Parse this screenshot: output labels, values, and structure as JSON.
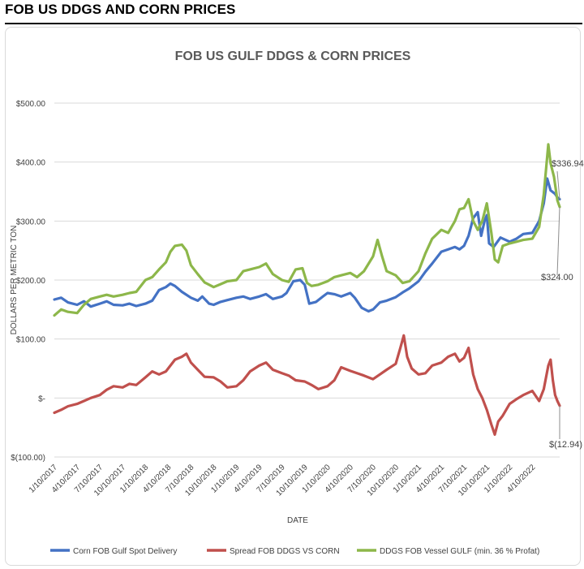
{
  "page": {
    "heading": "FOB US DDGS AND CORN PRICES"
  },
  "colors": {
    "corn": "#4472c4",
    "spread": "#c0504d",
    "ddgs": "#8db74a",
    "grid": "#d9d9d9",
    "text": "#595959"
  },
  "chart_data": {
    "type": "line",
    "title": "FOB US GULF DDGS & CORN PRICES",
    "xlabel": "DATE",
    "ylabel": "DOLLARS PER METRIC TON",
    "ylim": [
      -100,
      500
    ],
    "yticks": [
      {
        "value": -100,
        "label": "$(100.00)"
      },
      {
        "value": 0,
        "label": "$-"
      },
      {
        "value": 100,
        "label": "$100.00"
      },
      {
        "value": 200,
        "label": "$200.00"
      },
      {
        "value": 300,
        "label": "$300.00"
      },
      {
        "value": 400,
        "label": "$400.00"
      },
      {
        "value": 500,
        "label": "$500.00"
      }
    ],
    "xlim": [
      0,
      22.2
    ],
    "xticks": [
      {
        "value": 0,
        "label": "1/10/2017"
      },
      {
        "value": 1,
        "label": "4/10/2017"
      },
      {
        "value": 2,
        "label": "7/10/2017"
      },
      {
        "value": 3,
        "label": "10/10/2017"
      },
      {
        "value": 4,
        "label": "1/10/2018"
      },
      {
        "value": 5,
        "label": "4/10/2018"
      },
      {
        "value": 6,
        "label": "7/10/2018"
      },
      {
        "value": 7,
        "label": "10/10/2018"
      },
      {
        "value": 8,
        "label": "1/10/2019"
      },
      {
        "value": 9,
        "label": "4/10/2019"
      },
      {
        "value": 10,
        "label": "7/10/2019"
      },
      {
        "value": 11,
        "label": "10/10/2019"
      },
      {
        "value": 12,
        "label": "1/10/2020"
      },
      {
        "value": 13,
        "label": "4/10/2020"
      },
      {
        "value": 14,
        "label": "7/10/2020"
      },
      {
        "value": 15,
        "label": "10/10/2020"
      },
      {
        "value": 16,
        "label": "1/10/2021"
      },
      {
        "value": 17,
        "label": "4/10/2021"
      },
      {
        "value": 18,
        "label": "7/10/2021"
      },
      {
        "value": 19,
        "label": "10/10/2021"
      },
      {
        "value": 20,
        "label": "1/10/2022"
      },
      {
        "value": 21,
        "label": "4/10/2022"
      }
    ],
    "series": [
      {
        "name": "Corn FOB Gulf Spot Delivery",
        "color": "#4472c4",
        "points": [
          [
            0,
            167
          ],
          [
            0.3,
            170
          ],
          [
            0.6,
            162
          ],
          [
            1,
            158
          ],
          [
            1.3,
            164
          ],
          [
            1.6,
            155
          ],
          [
            2,
            160
          ],
          [
            2.3,
            164
          ],
          [
            2.6,
            158
          ],
          [
            3,
            157
          ],
          [
            3.3,
            160
          ],
          [
            3.6,
            156
          ],
          [
            4,
            160
          ],
          [
            4.3,
            165
          ],
          [
            4.6,
            183
          ],
          [
            4.9,
            188
          ],
          [
            5.1,
            194
          ],
          [
            5.3,
            190
          ],
          [
            5.6,
            180
          ],
          [
            6,
            170
          ],
          [
            6.3,
            165
          ],
          [
            6.5,
            172
          ],
          [
            6.8,
            160
          ],
          [
            7,
            158
          ],
          [
            7.3,
            163
          ],
          [
            7.6,
            166
          ],
          [
            8,
            170
          ],
          [
            8.3,
            172
          ],
          [
            8.6,
            168
          ],
          [
            9,
            172
          ],
          [
            9.3,
            176
          ],
          [
            9.6,
            168
          ],
          [
            10,
            172
          ],
          [
            10.2,
            178
          ],
          [
            10.5,
            198
          ],
          [
            10.8,
            200
          ],
          [
            11,
            192
          ],
          [
            11.2,
            160
          ],
          [
            11.5,
            163
          ],
          [
            11.8,
            172
          ],
          [
            12,
            178
          ],
          [
            12.3,
            176
          ],
          [
            12.6,
            172
          ],
          [
            13,
            178
          ],
          [
            13.2,
            170
          ],
          [
            13.5,
            153
          ],
          [
            13.8,
            147
          ],
          [
            14,
            150
          ],
          [
            14.3,
            162
          ],
          [
            14.6,
            165
          ],
          [
            15,
            171
          ],
          [
            15.3,
            179
          ],
          [
            15.6,
            186
          ],
          [
            16,
            198
          ],
          [
            16.3,
            214
          ],
          [
            16.6,
            228
          ],
          [
            17,
            248
          ],
          [
            17.3,
            252
          ],
          [
            17.6,
            256
          ],
          [
            17.8,
            252
          ],
          [
            18,
            258
          ],
          [
            18.2,
            275
          ],
          [
            18.4,
            305
          ],
          [
            18.6,
            315
          ],
          [
            18.75,
            275
          ],
          [
            18.9,
            300
          ],
          [
            19,
            310
          ],
          [
            19.1,
            262
          ],
          [
            19.3,
            256
          ],
          [
            19.6,
            272
          ],
          [
            20,
            265
          ],
          [
            20.3,
            270
          ],
          [
            20.6,
            278
          ],
          [
            21,
            280
          ],
          [
            21.3,
            300
          ],
          [
            21.5,
            330
          ],
          [
            21.65,
            372
          ],
          [
            21.8,
            352
          ],
          [
            22,
            346
          ],
          [
            22.1,
            340
          ],
          [
            22.2,
            337
          ]
        ]
      },
      {
        "name": "Spread FOB DDGS VS CORN",
        "color": "#c0504d",
        "points": [
          [
            0,
            -25
          ],
          [
            0.3,
            -20
          ],
          [
            0.6,
            -14
          ],
          [
            1,
            -10
          ],
          [
            1.3,
            -5
          ],
          [
            1.6,
            0
          ],
          [
            2,
            5
          ],
          [
            2.3,
            14
          ],
          [
            2.6,
            20
          ],
          [
            3,
            18
          ],
          [
            3.3,
            24
          ],
          [
            3.6,
            22
          ],
          [
            4,
            35
          ],
          [
            4.3,
            45
          ],
          [
            4.6,
            40
          ],
          [
            4.9,
            45
          ],
          [
            5.1,
            55
          ],
          [
            5.3,
            65
          ],
          [
            5.6,
            70
          ],
          [
            5.8,
            75
          ],
          [
            6,
            60
          ],
          [
            6.3,
            48
          ],
          [
            6.6,
            36
          ],
          [
            7,
            35
          ],
          [
            7.3,
            28
          ],
          [
            7.6,
            18
          ],
          [
            8,
            20
          ],
          [
            8.3,
            30
          ],
          [
            8.6,
            45
          ],
          [
            9,
            55
          ],
          [
            9.3,
            60
          ],
          [
            9.6,
            48
          ],
          [
            10,
            42
          ],
          [
            10.3,
            38
          ],
          [
            10.6,
            30
          ],
          [
            11,
            28
          ],
          [
            11.3,
            22
          ],
          [
            11.6,
            15
          ],
          [
            12,
            20
          ],
          [
            12.3,
            30
          ],
          [
            12.6,
            52
          ],
          [
            13,
            46
          ],
          [
            13.3,
            42
          ],
          [
            13.6,
            38
          ],
          [
            14,
            32
          ],
          [
            14.3,
            40
          ],
          [
            14.6,
            48
          ],
          [
            15,
            58
          ],
          [
            15.2,
            85
          ],
          [
            15.35,
            106
          ],
          [
            15.5,
            70
          ],
          [
            15.7,
            50
          ],
          [
            16,
            40
          ],
          [
            16.3,
            42
          ],
          [
            16.6,
            55
          ],
          [
            17,
            60
          ],
          [
            17.3,
            70
          ],
          [
            17.6,
            75
          ],
          [
            17.8,
            62
          ],
          [
            18,
            68
          ],
          [
            18.2,
            85
          ],
          [
            18.4,
            40
          ],
          [
            18.6,
            15
          ],
          [
            18.8,
            0
          ],
          [
            19,
            -20
          ],
          [
            19.2,
            -45
          ],
          [
            19.35,
            -62
          ],
          [
            19.5,
            -40
          ],
          [
            19.7,
            -30
          ],
          [
            20,
            -10
          ],
          [
            20.3,
            -2
          ],
          [
            20.6,
            5
          ],
          [
            21,
            12
          ],
          [
            21.3,
            -5
          ],
          [
            21.5,
            15
          ],
          [
            21.7,
            55
          ],
          [
            21.8,
            65
          ],
          [
            21.9,
            30
          ],
          [
            22,
            5
          ],
          [
            22.1,
            -5
          ],
          [
            22.2,
            -13
          ]
        ]
      },
      {
        "name": "DDGS FOB Vessel GULF  (min. 36 % Profat)",
        "color": "#8db74a",
        "points": [
          [
            0,
            140
          ],
          [
            0.3,
            150
          ],
          [
            0.6,
            146
          ],
          [
            1,
            144
          ],
          [
            1.3,
            158
          ],
          [
            1.6,
            168
          ],
          [
            2,
            172
          ],
          [
            2.3,
            175
          ],
          [
            2.6,
            172
          ],
          [
            3,
            175
          ],
          [
            3.3,
            178
          ],
          [
            3.6,
            180
          ],
          [
            4,
            200
          ],
          [
            4.3,
            205
          ],
          [
            4.6,
            218
          ],
          [
            4.9,
            230
          ],
          [
            5.1,
            248
          ],
          [
            5.3,
            258
          ],
          [
            5.6,
            260
          ],
          [
            5.8,
            250
          ],
          [
            6,
            225
          ],
          [
            6.3,
            210
          ],
          [
            6.6,
            196
          ],
          [
            7,
            188
          ],
          [
            7.3,
            193
          ],
          [
            7.6,
            198
          ],
          [
            8,
            200
          ],
          [
            8.3,
            215
          ],
          [
            8.6,
            218
          ],
          [
            9,
            222
          ],
          [
            9.3,
            228
          ],
          [
            9.6,
            210
          ],
          [
            10,
            200
          ],
          [
            10.3,
            197
          ],
          [
            10.6,
            218
          ],
          [
            10.9,
            220
          ],
          [
            11.1,
            195
          ],
          [
            11.3,
            190
          ],
          [
            11.6,
            192
          ],
          [
            12,
            198
          ],
          [
            12.3,
            205
          ],
          [
            12.6,
            208
          ],
          [
            13,
            212
          ],
          [
            13.3,
            205
          ],
          [
            13.6,
            215
          ],
          [
            14,
            240
          ],
          [
            14.2,
            268
          ],
          [
            14.4,
            240
          ],
          [
            14.6,
            215
          ],
          [
            15,
            208
          ],
          [
            15.3,
            195
          ],
          [
            15.6,
            198
          ],
          [
            16,
            215
          ],
          [
            16.3,
            245
          ],
          [
            16.6,
            270
          ],
          [
            17,
            285
          ],
          [
            17.3,
            280
          ],
          [
            17.6,
            300
          ],
          [
            17.8,
            320
          ],
          [
            18,
            322
          ],
          [
            18.2,
            337
          ],
          [
            18.4,
            300
          ],
          [
            18.6,
            285
          ],
          [
            18.8,
            300
          ],
          [
            19,
            330
          ],
          [
            19.2,
            280
          ],
          [
            19.35,
            235
          ],
          [
            19.5,
            230
          ],
          [
            19.7,
            258
          ],
          [
            20,
            262
          ],
          [
            20.3,
            265
          ],
          [
            20.6,
            268
          ],
          [
            21,
            270
          ],
          [
            21.3,
            290
          ],
          [
            21.5,
            345
          ],
          [
            21.7,
            430
          ],
          [
            21.8,
            398
          ],
          [
            21.95,
            375
          ],
          [
            22.1,
            335
          ],
          [
            22.2,
            324
          ]
        ]
      }
    ],
    "annotations": [
      {
        "text": "$336.94",
        "series": 0,
        "value": 336.94
      },
      {
        "text": "$324.00",
        "series": 2,
        "value": 324.0
      },
      {
        "text": "$(12.94)",
        "series": 1,
        "value": -12.94
      }
    ],
    "legend": {
      "position": "bottom"
    }
  }
}
